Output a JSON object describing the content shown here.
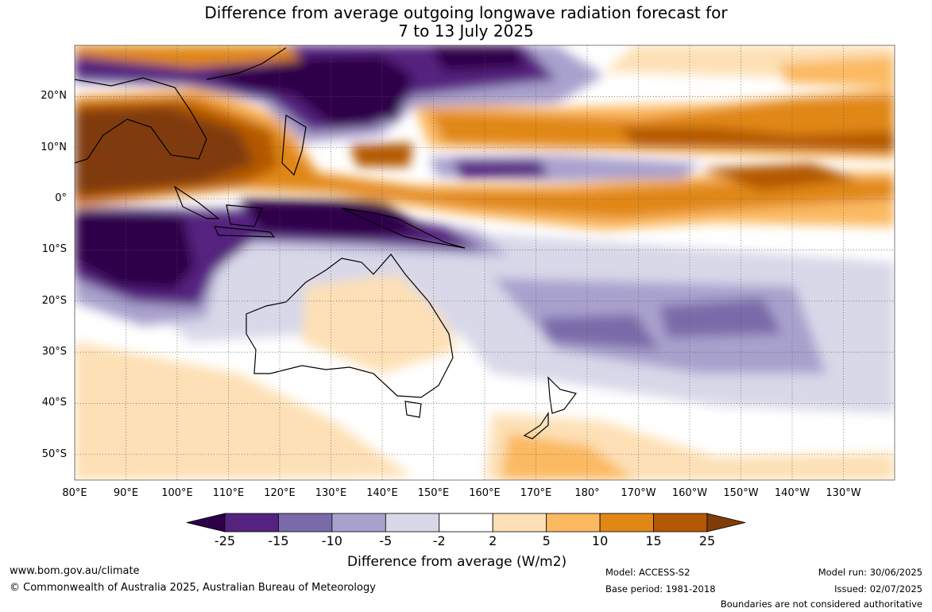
{
  "title": {
    "line1": "Difference from average outgoing longwave radiation forecast for",
    "line2": "7 to 13 July 2025"
  },
  "map": {
    "lat_labels": [
      "20°N",
      "10°N",
      "0°",
      "10°S",
      "20°S",
      "30°S",
      "40°S",
      "50°S"
    ],
    "lon_labels": [
      "80°E",
      "90°E",
      "100°E",
      "110°E",
      "120°E",
      "130°E",
      "140°E",
      "150°E",
      "160°E",
      "170°E",
      "180°",
      "170°W",
      "160°W",
      "150°W",
      "140°W",
      "130°W"
    ],
    "extent": {
      "lon": [
        80,
        240
      ],
      "lat": [
        -55,
        30
      ]
    }
  },
  "colorbar": {
    "ticks": [
      "-25",
      "-15",
      "-10",
      "-5",
      "-2",
      "2",
      "5",
      "10",
      "15",
      "25"
    ],
    "colors": [
      "#2d0049",
      "#54237f",
      "#7a6aa9",
      "#a9a1cd",
      "#d8d8e9",
      "#ffffff",
      "#fde0b5",
      "#fbb962",
      "#e08716",
      "#b35805",
      "#7f3b08"
    ],
    "label": "Difference from average (W/m2)"
  },
  "footer": {
    "url": "www.bom.gov.au/climate",
    "copyright": "© Commonwealth of Australia 2025, Australian Bureau of Meteorology",
    "model": "Model: ACCESS-S2",
    "base_period": "Base period: 1981-2018",
    "model_run": "Model run: 30/06/2025",
    "issued": "Issued: 02/07/2025",
    "disclaimer": "Boundaries are not considered authoritative"
  }
}
